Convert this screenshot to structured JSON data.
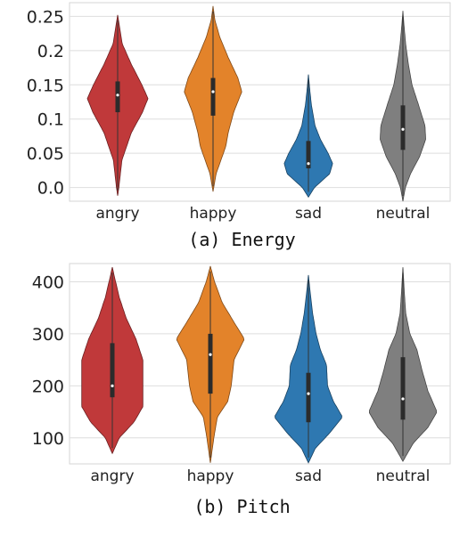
{
  "chart_data": [
    {
      "type": "violin",
      "caption": "(a) Energy",
      "categories": [
        "angry",
        "happy",
        "sad",
        "neutral"
      ],
      "yticks": [
        "0.0",
        "0.05",
        "0.1",
        "0.15",
        "0.2",
        "0.25"
      ],
      "ylim": [
        -0.02,
        0.27
      ],
      "grid": true,
      "colors": [
        "#c0393a",
        "#e3832a",
        "#2e78b1",
        "#7f7f7f"
      ],
      "series": [
        {
          "category": "angry",
          "min": -0.012,
          "max": 0.252,
          "q1": 0.11,
          "median": 0.135,
          "q3": 0.155,
          "profile": [
            [
              -0.012,
              0
            ],
            [
              0.0,
              0.04
            ],
            [
              0.04,
              0.14
            ],
            [
              0.08,
              0.45
            ],
            [
              0.11,
              0.82
            ],
            [
              0.13,
              1.0
            ],
            [
              0.15,
              0.8
            ],
            [
              0.18,
              0.45
            ],
            [
              0.21,
              0.15
            ],
            [
              0.235,
              0.06
            ],
            [
              0.252,
              0
            ]
          ]
        },
        {
          "category": "happy",
          "min": -0.006,
          "max": 0.265,
          "q1": 0.105,
          "median": 0.14,
          "q3": 0.16,
          "profile": [
            [
              -0.006,
              0
            ],
            [
              0.02,
              0.1
            ],
            [
              0.045,
              0.3
            ],
            [
              0.06,
              0.42
            ],
            [
              0.08,
              0.5
            ],
            [
              0.11,
              0.68
            ],
            [
              0.14,
              0.95
            ],
            [
              0.16,
              0.82
            ],
            [
              0.19,
              0.5
            ],
            [
              0.22,
              0.22
            ],
            [
              0.245,
              0.06
            ],
            [
              0.265,
              0
            ]
          ]
        },
        {
          "category": "sad",
          "min": -0.014,
          "max": 0.165,
          "q1": 0.028,
          "median": 0.035,
          "q3": 0.068,
          "profile": [
            [
              -0.014,
              0
            ],
            [
              0.0,
              0.2
            ],
            [
              0.02,
              0.7
            ],
            [
              0.035,
              0.8
            ],
            [
              0.05,
              0.65
            ],
            [
              0.07,
              0.4
            ],
            [
              0.09,
              0.22
            ],
            [
              0.12,
              0.1
            ],
            [
              0.145,
              0.04
            ],
            [
              0.165,
              0
            ]
          ]
        },
        {
          "category": "neutral",
          "min": -0.02,
          "max": 0.258,
          "q1": 0.055,
          "median": 0.085,
          "q3": 0.12,
          "profile": [
            [
              -0.02,
              0
            ],
            [
              0.0,
              0.08
            ],
            [
              0.02,
              0.25
            ],
            [
              0.045,
              0.55
            ],
            [
              0.07,
              0.75
            ],
            [
              0.09,
              0.73
            ],
            [
              0.12,
              0.52
            ],
            [
              0.15,
              0.3
            ],
            [
              0.18,
              0.18
            ],
            [
              0.21,
              0.09
            ],
            [
              0.235,
              0.04
            ],
            [
              0.258,
              0
            ]
          ]
        }
      ]
    },
    {
      "type": "violin",
      "caption": "(b) Pitch",
      "categories": [
        "angry",
        "happy",
        "sad",
        "neutral"
      ],
      "yticks": [
        "100",
        "200",
        "300",
        "400"
      ],
      "ylim": [
        50,
        435
      ],
      "grid": true,
      "colors": [
        "#c0393a",
        "#e3832a",
        "#2e78b1",
        "#7f7f7f"
      ],
      "series": [
        {
          "category": "angry",
          "min": 70,
          "max": 428,
          "q1": 178,
          "median": 200,
          "q3": 282,
          "profile": [
            [
              70,
              0
            ],
            [
              100,
              0.2
            ],
            [
              130,
              0.62
            ],
            [
              160,
              0.88
            ],
            [
              200,
              0.88
            ],
            [
              250,
              0.88
            ],
            [
              290,
              0.68
            ],
            [
              330,
              0.4
            ],
            [
              370,
              0.2
            ],
            [
              410,
              0.06
            ],
            [
              428,
              0
            ]
          ]
        },
        {
          "category": "happy",
          "min": 52,
          "max": 430,
          "q1": 185,
          "median": 260,
          "q3": 300,
          "profile": [
            [
              52,
              0
            ],
            [
              100,
              0.1
            ],
            [
              140,
              0.2
            ],
            [
              170,
              0.5
            ],
            [
              200,
              0.6
            ],
            [
              250,
              0.68
            ],
            [
              290,
              0.98
            ],
            [
              320,
              0.7
            ],
            [
              360,
              0.34
            ],
            [
              400,
              0.12
            ],
            [
              430,
              0
            ]
          ]
        },
        {
          "category": "sad",
          "min": 52,
          "max": 413,
          "q1": 130,
          "median": 185,
          "q3": 225,
          "profile": [
            [
              52,
              0
            ],
            [
              80,
              0.2
            ],
            [
              110,
              0.62
            ],
            [
              140,
              0.98
            ],
            [
              170,
              0.72
            ],
            [
              200,
              0.55
            ],
            [
              240,
              0.52
            ],
            [
              270,
              0.34
            ],
            [
              300,
              0.22
            ],
            [
              340,
              0.12
            ],
            [
              380,
              0.05
            ],
            [
              413,
              0
            ]
          ]
        },
        {
          "category": "neutral",
          "min": 55,
          "max": 428,
          "q1": 135,
          "median": 175,
          "q3": 255,
          "profile": [
            [
              55,
              0
            ],
            [
              90,
              0.3
            ],
            [
              120,
              0.72
            ],
            [
              150,
              0.98
            ],
            [
              190,
              0.72
            ],
            [
              230,
              0.55
            ],
            [
              270,
              0.4
            ],
            [
              300,
              0.2
            ],
            [
              340,
              0.08
            ],
            [
              380,
              0.04
            ],
            [
              428,
              0
            ]
          ]
        }
      ]
    }
  ]
}
